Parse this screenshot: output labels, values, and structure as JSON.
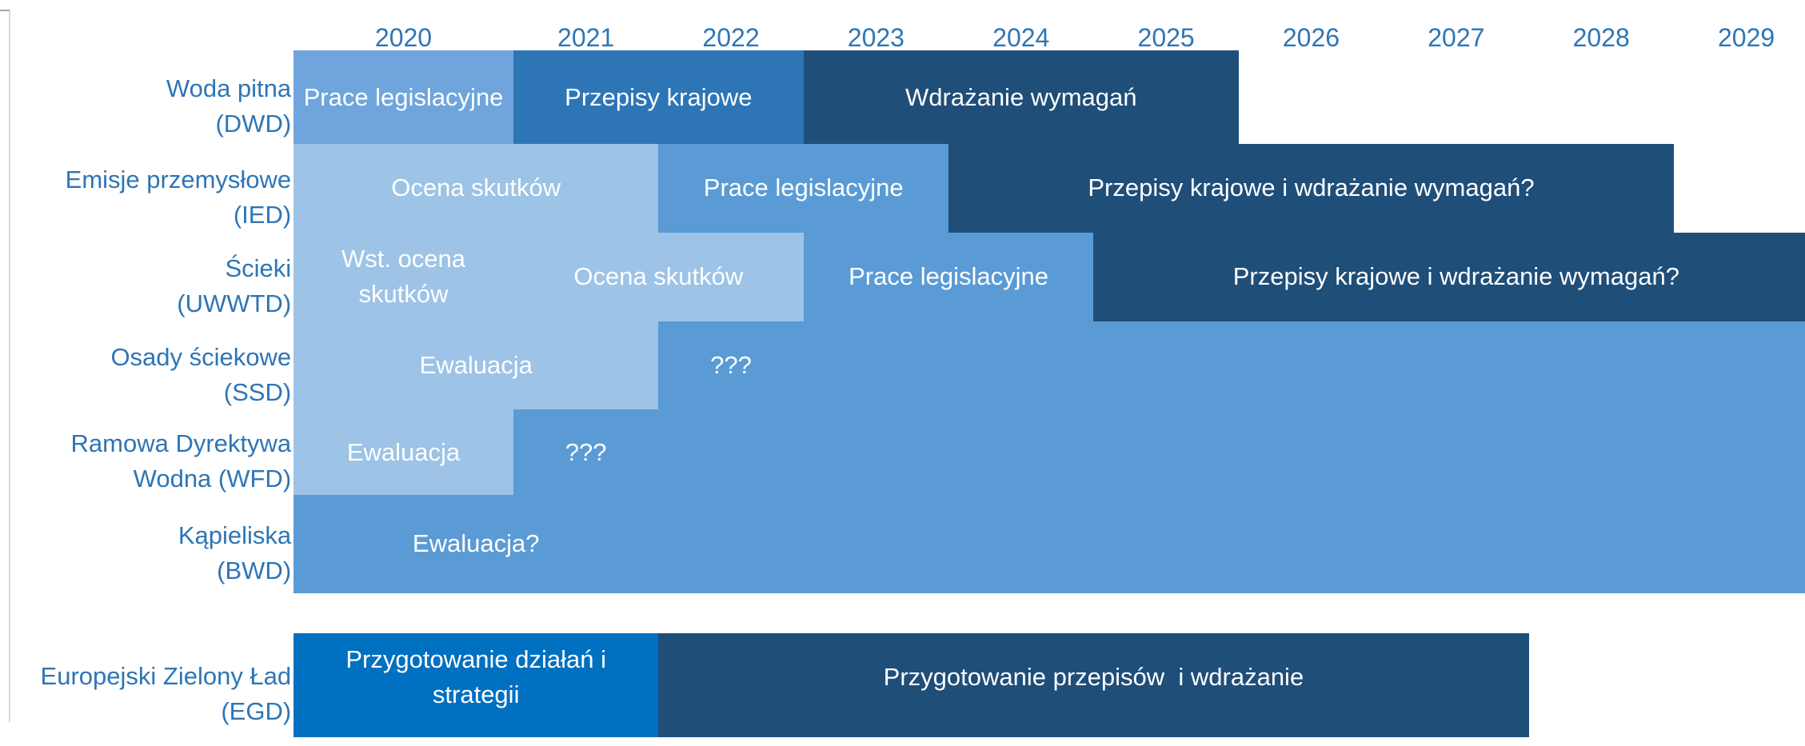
{
  "years": [
    "2020",
    "2021",
    "2022",
    "2023",
    "2024",
    "2025",
    "2026",
    "2027",
    "2028",
    "2029"
  ],
  "rows": [
    {
      "label": [
        "Woda pitna",
        "(DWD)"
      ],
      "segments": [
        {
          "text": [
            "Prace legislacyjne"
          ],
          "color": "#6fa5dc"
        },
        {
          "text": [
            "Przepisy krajowe"
          ],
          "color": "#2e75b6"
        },
        {
          "text": [
            "Wdrażanie wymagań"
          ],
          "color": "#1f4e79"
        }
      ]
    },
    {
      "label": [
        "Emisje przemysłowe",
        "(IED)"
      ],
      "segments": [
        {
          "text": [
            "Ocena skutków"
          ],
          "color": "#9dc3e6"
        },
        {
          "text": [
            "Prace legislacyjne"
          ],
          "color": "#5b9bd5"
        },
        {
          "text": [
            "Przepisy krajowe i wdrażanie wymagań?"
          ],
          "color": "#1f4e79"
        }
      ]
    },
    {
      "label": [
        "Ścieki",
        "(UWWTD)"
      ],
      "segments": [
        {
          "text": [
            "Wst. ocena",
            "skutków"
          ],
          "color": "#9dc3e6"
        },
        {
          "text": [
            "Ocena skutków"
          ],
          "color": "#9dc3e6"
        },
        {
          "text": [
            "Prace legislacyjne"
          ],
          "color": "#5b9bd5"
        },
        {
          "text": [
            "Przepisy krajowe i wdrażanie wymagań?"
          ],
          "color": "#1f4e79"
        }
      ]
    },
    {
      "label": [
        "Osady ściekowe",
        "(SSD)"
      ],
      "segments": [
        {
          "text": [
            "Ewaluacja"
          ],
          "color": "#9dc3e6"
        },
        {
          "text": [
            "???"
          ],
          "color": "#5b9bd5"
        }
      ]
    },
    {
      "label": [
        "Ramowa Dyrektywa",
        "Wodna (WFD)"
      ],
      "segments": [
        {
          "text": [
            "Ewaluacja"
          ],
          "color": "#9dc3e6"
        },
        {
          "text": [
            "???"
          ],
          "color": "#5b9bd5"
        }
      ]
    },
    {
      "label": [
        "Kąpieliska",
        "(BWD)"
      ],
      "segments": [
        {
          "text": [
            "Ewaluacja?"
          ],
          "color": "#5b9bd5"
        }
      ]
    },
    {
      "label": [
        "Europejski Zielony Ład",
        "(EGD)"
      ],
      "segments": [
        {
          "text": [
            "Przygotowanie działań i",
            "strategii"
          ],
          "color": "#0070c0"
        },
        {
          "text": [
            "Przygotowanie przepisów  i wdrażanie"
          ],
          "color": "#1f4e79"
        }
      ]
    }
  ]
}
